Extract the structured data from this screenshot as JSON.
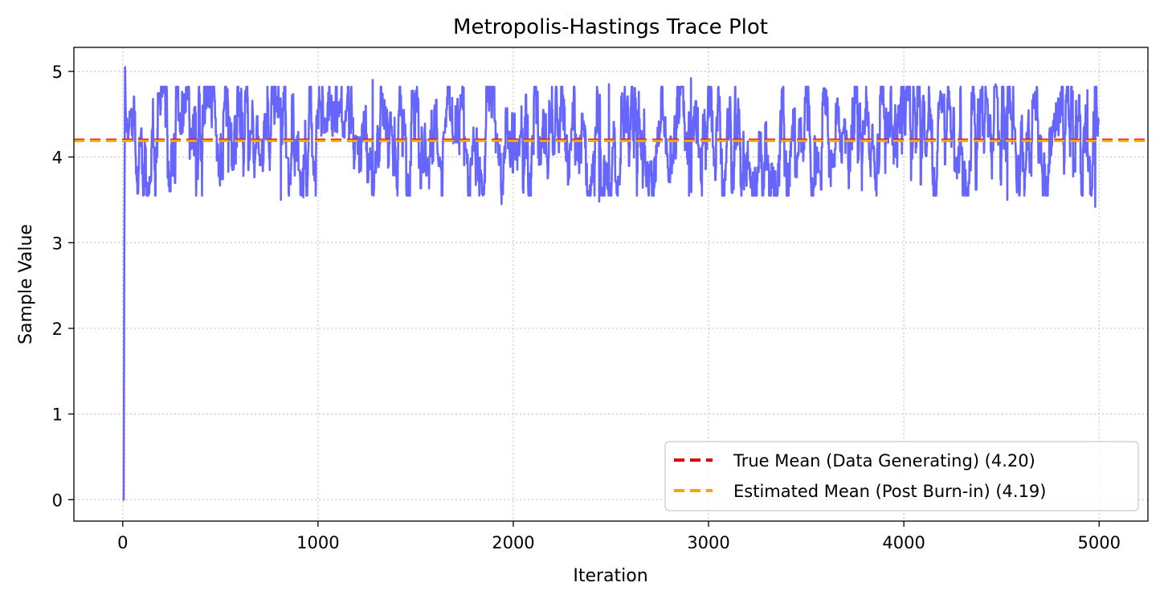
{
  "chart_data": {
    "type": "line",
    "title": "Metropolis-Hastings Trace Plot",
    "xlabel": "Iteration",
    "ylabel": "Sample Value",
    "xlim": [
      -250,
      5250
    ],
    "ylim": [
      -0.25,
      5.28
    ],
    "xticks": [
      0,
      1000,
      2000,
      3000,
      4000,
      5000
    ],
    "yticks": [
      0,
      1,
      2,
      3,
      4,
      5
    ],
    "grid": true,
    "grid_style": "dotted",
    "legend_position": "bottom-right",
    "n_iterations": 5000,
    "series": [
      {
        "kind": "trace",
        "color": "#6666ff",
        "burn_in_x": [
          0,
          5,
          8,
          10,
          12,
          15,
          18,
          22,
          27,
          33
        ],
        "burn_in_y": [
          0.0,
          0.0,
          2.8,
          3.9,
          5.05,
          4.6,
          4.3,
          4.45,
          4.2,
          4.35
        ],
        "center": 4.19,
        "typical_range": [
          3.45,
          4.92
        ],
        "peaks": [
          {
            "x": 12,
            "y": 5.05
          },
          {
            "x": 1280,
            "y": 4.9
          },
          {
            "x": 2910,
            "y": 4.92
          },
          {
            "x": 2490,
            "y": 4.85
          },
          {
            "x": 4470,
            "y": 4.85
          },
          {
            "x": 4940,
            "y": 4.78
          }
        ],
        "troughs": [
          {
            "x": 1940,
            "y": 3.45
          },
          {
            "x": 4980,
            "y": 3.42
          },
          {
            "x": 810,
            "y": 3.5
          },
          {
            "x": 2440,
            "y": 3.48
          },
          {
            "x": 4530,
            "y": 3.5
          },
          {
            "x": 2900,
            "y": 3.55
          },
          {
            "x": 925,
            "y": 3.53
          }
        ]
      },
      {
        "name": "True Mean (Data Generating) (4.20)",
        "kind": "hline",
        "y": 4.2,
        "color": "#e00000",
        "dash": "dashed"
      },
      {
        "name": "Estimated Mean (Post Burn-in) (4.19)",
        "kind": "hline",
        "y": 4.19,
        "color": "#ffa500",
        "dash": "dashed"
      }
    ]
  }
}
